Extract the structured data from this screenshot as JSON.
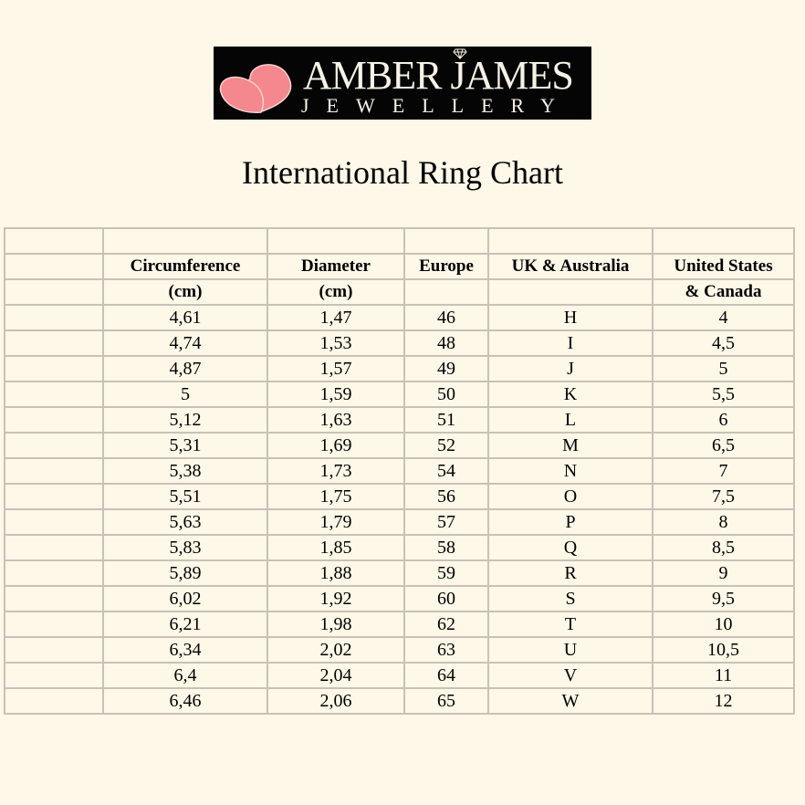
{
  "logo": {
    "line1": "AMBER JAMES",
    "line2": "JEWELLERY",
    "heart_color": "#f4888e",
    "icon": "diamond-icon"
  },
  "title": "International Ring Chart",
  "table": {
    "header_row1": [
      "",
      "Circumference",
      "Diameter",
      "Europe",
      "UK & Australia",
      "United States"
    ],
    "header_row2": [
      "",
      "(cm)",
      "(cm)",
      "",
      "",
      "& Canada"
    ],
    "rows": [
      [
        "4,61",
        "1,47",
        "46",
        "H",
        "4"
      ],
      [
        "4,74",
        "1,53",
        "48",
        "I",
        "4,5"
      ],
      [
        "4,87",
        "1,57",
        "49",
        "J",
        "5"
      ],
      [
        "5",
        "1,59",
        "50",
        "K",
        "5,5"
      ],
      [
        "5,12",
        "1,63",
        "51",
        "L",
        "6"
      ],
      [
        "5,31",
        "1,69",
        "52",
        "M",
        "6,5"
      ],
      [
        "5,38",
        "1,73",
        "54",
        "N",
        "7"
      ],
      [
        "5,51",
        "1,75",
        "56",
        "O",
        "7,5"
      ],
      [
        "5,63",
        "1,79",
        "57",
        "P",
        "8"
      ],
      [
        "5,83",
        "1,85",
        "58",
        "Q",
        "8,5"
      ],
      [
        "5,89",
        "1,88",
        "59",
        "R",
        "9"
      ],
      [
        "6,02",
        "1,92",
        "60",
        "S",
        "9,5"
      ],
      [
        "6,21",
        "1,98",
        "62",
        "T",
        "10"
      ],
      [
        "6,34",
        "2,02",
        "63",
        "U",
        "10,5"
      ],
      [
        "6,4",
        "2,04",
        "64",
        "V",
        "11"
      ],
      [
        "6,46",
        "2,06",
        "65",
        "W",
        "12"
      ]
    ]
  }
}
